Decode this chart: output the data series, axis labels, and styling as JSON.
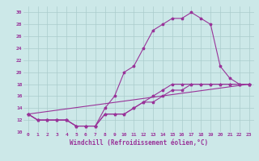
{
  "bg_color": "#cce8e8",
  "line_color": "#993399",
  "marker_color": "#993399",
  "grid_color": "#aacccc",
  "xlabel": "Windchill (Refroidissement éolien,°C)",
  "xlim": [
    -0.5,
    23.5
  ],
  "ylim": [
    10,
    31
  ],
  "yticks": [
    10,
    12,
    14,
    16,
    18,
    20,
    22,
    24,
    26,
    28,
    30
  ],
  "xticks": [
    0,
    1,
    2,
    3,
    4,
    5,
    6,
    7,
    8,
    9,
    10,
    11,
    12,
    13,
    14,
    15,
    16,
    17,
    18,
    19,
    20,
    21,
    22,
    23
  ],
  "line1_x": [
    0,
    1,
    2,
    3,
    4,
    5,
    6,
    7,
    8,
    9,
    10,
    11,
    12,
    13,
    14,
    15,
    16,
    17,
    18,
    19,
    20,
    21,
    22,
    23
  ],
  "line1_y": [
    13,
    12,
    12,
    12,
    12,
    11,
    11,
    11,
    14,
    16,
    20,
    21,
    24,
    27,
    28,
    29,
    29,
    30,
    29,
    28,
    21,
    19,
    18,
    18
  ],
  "line2_x": [
    0,
    1,
    2,
    3,
    4,
    5,
    6,
    7,
    8,
    9,
    10,
    11,
    12,
    13,
    14,
    15,
    16,
    17,
    18,
    19,
    20,
    21,
    22,
    23
  ],
  "line2_y": [
    13,
    12,
    12,
    12,
    12,
    11,
    11,
    11,
    13,
    13,
    13,
    14,
    15,
    16,
    17,
    18,
    18,
    18,
    18,
    18,
    18,
    18,
    18,
    18
  ],
  "line3_x": [
    0,
    1,
    2,
    3,
    4,
    5,
    6,
    7,
    8,
    9,
    10,
    11,
    12,
    13,
    14,
    15,
    16,
    17,
    18,
    19,
    20,
    21,
    22,
    23
  ],
  "line3_y": [
    13,
    12,
    12,
    12,
    12,
    11,
    11,
    11,
    13,
    13,
    13,
    14,
    15,
    15,
    16,
    17,
    17,
    18,
    18,
    18,
    18,
    18,
    18,
    18
  ],
  "line4_x": [
    0,
    23
  ],
  "line4_y": [
    13,
    18
  ]
}
